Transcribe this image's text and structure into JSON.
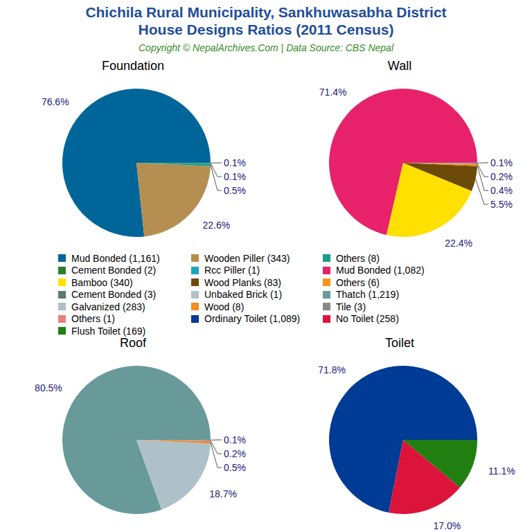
{
  "title": [
    "Chichila Rural Municipality, Sankhuwasabha District",
    "House Designs Ratios (2011 Census)"
  ],
  "subtitle": "Copyright © NepalArchives.Com | Data Source: CBS Nepal",
  "chart_data": [
    {
      "type": "pie",
      "title": "Foundation",
      "categories": [
        "Mud Bonded (1,161)",
        "Wooden Piller (343)",
        "Others (8)",
        "Cement Bonded (2)",
        "Rcc Piller (1)"
      ],
      "values": [
        76.6,
        22.6,
        0.5,
        0.1,
        0.1
      ],
      "value_labels": [
        "76.6%",
        "22.6%",
        "0.5%",
        "0.1%",
        "0.1%"
      ],
      "colors": [
        "#006699",
        "#b58f52",
        "#1b9e8a",
        "#2a7f2a",
        "#1aa5b8"
      ],
      "data_labels": true
    },
    {
      "type": "pie",
      "title": "Wall",
      "categories": [
        "Mud Bonded (1,082)",
        "Bamboo (340)",
        "Wood Planks (83)",
        "Others (6)",
        "Cement Bonded (3)",
        "Unbaked Brick (1)"
      ],
      "values": [
        71.4,
        22.4,
        5.5,
        0.4,
        0.2,
        0.1
      ],
      "value_labels": [
        "71.4%",
        "22.4%",
        "5.5%",
        "0.4%",
        "0.2%",
        "0.1%"
      ],
      "colors": [
        "#e8226a",
        "#ffe000",
        "#6b4a0a",
        "#f7941d",
        "#5f7a6e",
        "#b2c0c7"
      ],
      "data_labels": true
    },
    {
      "type": "pie",
      "title": "Roof",
      "categories": [
        "Thatch (1,219)",
        "Galvanized (283)",
        "Wood (8)",
        "Tile (3)",
        "Others (1)"
      ],
      "values": [
        80.5,
        18.7,
        0.5,
        0.2,
        0.1
      ],
      "value_labels": [
        "80.5%",
        "18.7%",
        "0.5%",
        "0.2%",
        "0.1%"
      ],
      "colors": [
        "#689a9a",
        "#afc1c8",
        "#f28c28",
        "#888888",
        "#e98080"
      ],
      "data_labels": true
    },
    {
      "type": "pie",
      "title": "Toilet",
      "categories": [
        "Ordinary Toilet (1,089)",
        "No Toilet (258)",
        "Flush Toilet (169)"
      ],
      "values": [
        71.8,
        17.0,
        11.1
      ],
      "value_labels": [
        "71.8%",
        "17.0%",
        "11.1%"
      ],
      "colors": [
        "#003b95",
        "#dc143c",
        "#217f11"
      ],
      "data_labels": true
    }
  ]
}
